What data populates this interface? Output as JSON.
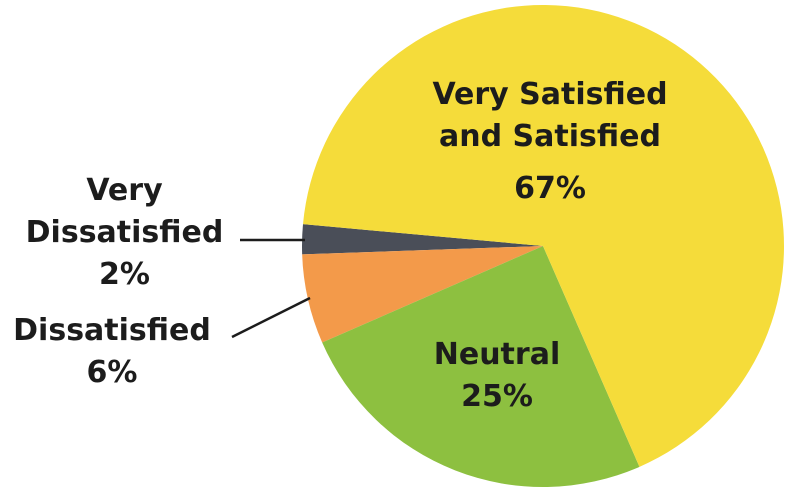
{
  "chart_data": {
    "type": "pie",
    "categories": [
      "Very Satisfied and Satisfied",
      "Neutral",
      "Dissatisfied",
      "Very Dissatisfied"
    ],
    "values": [
      67,
      25,
      6,
      2
    ],
    "value_labels": [
      "67%",
      "25%",
      "6%",
      "2%"
    ],
    "colors": [
      "#f5dc3a",
      "#8dc040",
      "#f39a4a",
      "#4a4e58"
    ]
  }
}
